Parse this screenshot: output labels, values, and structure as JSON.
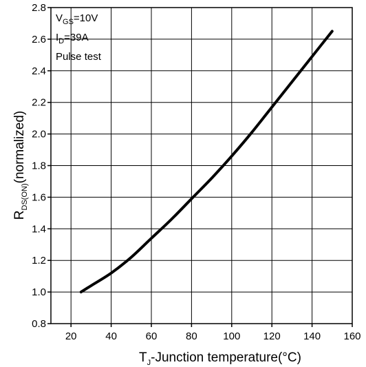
{
  "chart_data": {
    "type": "line",
    "title": "",
    "xlabel": {
      "main": "T",
      "sub": "J",
      "rest": "-Junction temperature(°C)"
    },
    "ylabel": {
      "main": "R",
      "sub": "DS(ON)",
      "rest": "(normalized)"
    },
    "xlim": [
      10,
      160
    ],
    "ylim": [
      0.8,
      2.8
    ],
    "xticks": [
      20,
      40,
      60,
      80,
      100,
      120,
      140,
      160
    ],
    "yticks": [
      "0.8",
      "1.0",
      "1.2",
      "1.4",
      "1.6",
      "1.8",
      "2.0",
      "2.2",
      "2.4",
      "2.6",
      "2.8"
    ],
    "grid": true,
    "annotations": [
      {
        "main": "V",
        "sub": "GS",
        "rest": "=10V"
      },
      {
        "main": "I",
        "sub": "D",
        "rest": "=39A"
      },
      {
        "main": "Pulse test",
        "sub": "",
        "rest": ""
      }
    ],
    "series": [
      {
        "x": [
          25,
          30,
          40,
          50,
          60,
          70,
          80,
          90,
          100,
          110,
          120,
          130,
          140,
          150
        ],
        "y": [
          1.0,
          1.04,
          1.12,
          1.22,
          1.34,
          1.46,
          1.59,
          1.72,
          1.86,
          2.01,
          2.17,
          2.33,
          2.49,
          2.65
        ]
      }
    ]
  },
  "style": {
    "line_color": "#000000",
    "grid_color": "#000000",
    "background": "#ffffff"
  }
}
